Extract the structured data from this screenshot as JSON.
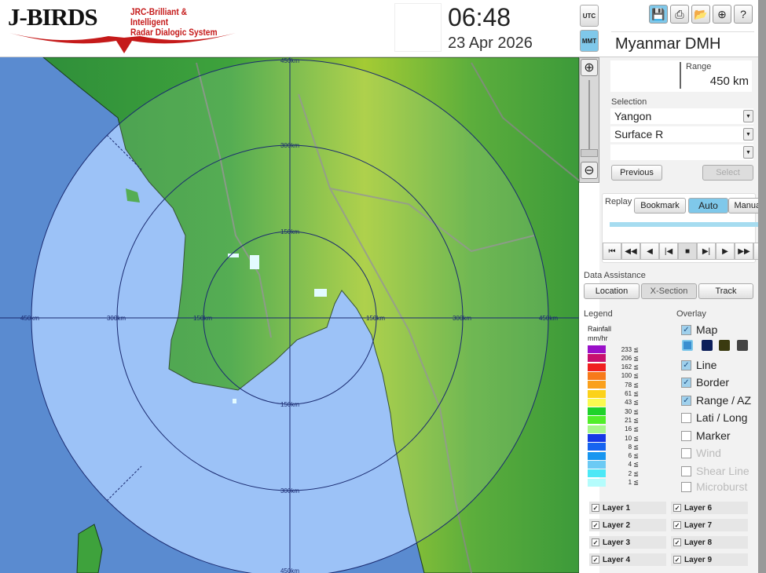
{
  "header": {
    "logo_main": "J-BIRDS",
    "logo_sub1": "JRC-Brilliant & Intelligent",
    "logo_sub2": "Radar Dialogic System",
    "time": "06:48",
    "date": "23 Apr 2026",
    "tz_utc": "UTC",
    "tz_mmt": "MMT",
    "tz_active": "MMT",
    "station": "Myanmar DMH"
  },
  "toolbar": [
    "save-icon",
    "print-icon",
    "folder-open-icon",
    "add-window-icon",
    "help-icon"
  ],
  "map": {
    "ring_labels": [
      "150km",
      "300km",
      "450km"
    ],
    "sea_color": "#8fbaf6",
    "outer_color": "#5a8bd0"
  },
  "range": {
    "label": "Range",
    "value": "450 km"
  },
  "selection": {
    "label": "Selection",
    "site": "Yangon",
    "product": "Surface R",
    "third": "",
    "previous": "Previous",
    "select": "Select"
  },
  "replay": {
    "label": "Replay",
    "bookmark": "Bookmark",
    "auto": "Auto",
    "manual": "Manual",
    "active": "Auto",
    "position": 1.0
  },
  "data_assistance": {
    "label": "Data Assistance",
    "location": "Location",
    "xsection": "X-Section",
    "track": "Track"
  },
  "legend": {
    "label": "Legend",
    "title1": "Rainfall",
    "title2": "mm/hr",
    "items": [
      {
        "v": "233 ≦",
        "c": "#9a10c8"
      },
      {
        "v": "206 ≦",
        "c": "#c8106e"
      },
      {
        "v": "162 ≦",
        "c": "#f02020"
      },
      {
        "v": "100 ≦",
        "c": "#f77a1a"
      },
      {
        "v": "78 ≦",
        "c": "#faa01c"
      },
      {
        "v": "61 ≦",
        "c": "#fcd21a"
      },
      {
        "v": "43 ≦",
        "c": "#fafa50"
      },
      {
        "v": "30 ≦",
        "c": "#1ed22a"
      },
      {
        "v": "21 ≦",
        "c": "#52ee2a"
      },
      {
        "v": "16 ≦",
        "c": "#a6f68a"
      },
      {
        "v": "10 ≦",
        "c": "#1638e6"
      },
      {
        "v": "8 ≦",
        "c": "#1664f0"
      },
      {
        "v": "6 ≦",
        "c": "#1896f0"
      },
      {
        "v": "4 ≦",
        "c": "#6ccaf4"
      },
      {
        "v": "2 ≦",
        "c": "#4ce8f6"
      },
      {
        "v": "1 ≦",
        "c": "#b4fcfc"
      }
    ]
  },
  "overlay": {
    "label": "Overlay",
    "items": [
      {
        "label": "Map",
        "checked": true,
        "enabled": true
      },
      {
        "label": "Line",
        "checked": true,
        "enabled": true
      },
      {
        "label": "Border",
        "checked": true,
        "enabled": true
      },
      {
        "label": "Range / AZ",
        "checked": true,
        "enabled": true
      },
      {
        "label": "Lati / Long",
        "checked": false,
        "enabled": true
      },
      {
        "label": "Marker",
        "checked": false,
        "enabled": true
      },
      {
        "label": "Wind",
        "checked": false,
        "enabled": false
      },
      {
        "label": "Shear Line",
        "checked": false,
        "enabled": false
      },
      {
        "label": "Microburst",
        "checked": false,
        "enabled": false
      }
    ],
    "map_styles": [
      "#3a8fd0",
      "#0c1f5a",
      "#3a3a10",
      "#444"
    ]
  },
  "layers": [
    {
      "label": "Layer 1",
      "checked": true
    },
    {
      "label": "Layer 2",
      "checked": true
    },
    {
      "label": "Layer 3",
      "checked": true
    },
    {
      "label": "Layer 4",
      "checked": true
    },
    {
      "label": "Layer 6",
      "checked": true
    },
    {
      "label": "Layer 7",
      "checked": true
    },
    {
      "label": "Layer 8",
      "checked": true
    },
    {
      "label": "Layer 9",
      "checked": true
    }
  ]
}
